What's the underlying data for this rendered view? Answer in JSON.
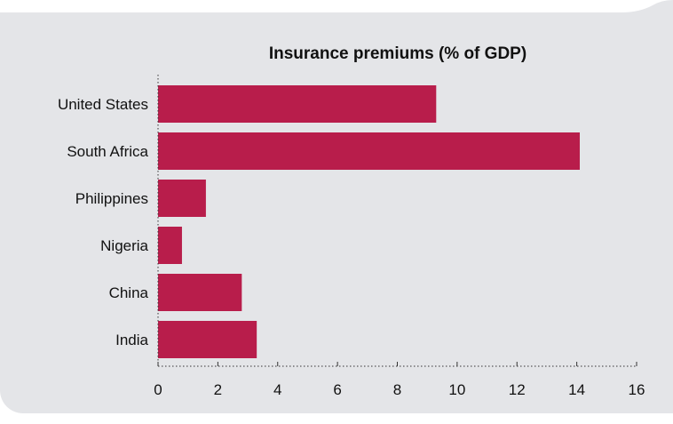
{
  "chart_data": {
    "type": "bar",
    "orientation": "horizontal",
    "title": "Insurance premiums (% of GDP)",
    "categories": [
      "United States",
      "South Africa",
      "Philippines",
      "Nigeria",
      "China",
      "India"
    ],
    "values": [
      9.3,
      14.1,
      1.6,
      0.8,
      2.8,
      3.3
    ],
    "xlim": [
      0,
      16
    ],
    "xticks": [
      "0",
      "2",
      "4",
      "6",
      "8",
      "10",
      "12",
      "14",
      "16"
    ],
    "grid": false,
    "colors": {
      "bar": "#b81d4b",
      "axis": "#333333"
    }
  }
}
